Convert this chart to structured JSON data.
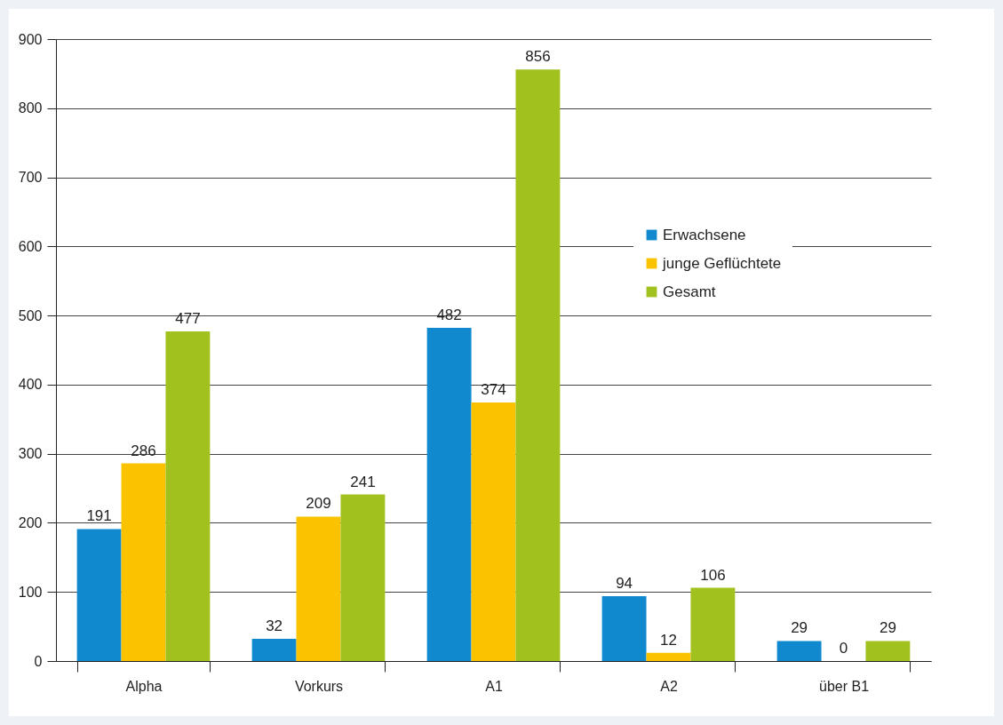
{
  "chart_data": {
    "type": "bar",
    "categories": [
      "Alpha",
      "Vorkurs",
      "A1",
      "A2",
      "über B1"
    ],
    "series": [
      {
        "name": "Erwachsene",
        "color": "#1089cf",
        "values": [
          191,
          32,
          482,
          94,
          29
        ]
      },
      {
        "name": "junge Geflüchtete",
        "color": "#fbc200",
        "values": [
          286,
          209,
          374,
          12,
          0
        ]
      },
      {
        "name": "Gesamt",
        "color": "#a0c11e",
        "values": [
          477,
          241,
          856,
          106,
          29
        ]
      }
    ],
    "ylim": [
      0,
      900
    ],
    "yticks": [
      0,
      100,
      200,
      300,
      400,
      500,
      600,
      700,
      800,
      900
    ],
    "grid": "y",
    "legend": "top right",
    "data_labels": true
  }
}
